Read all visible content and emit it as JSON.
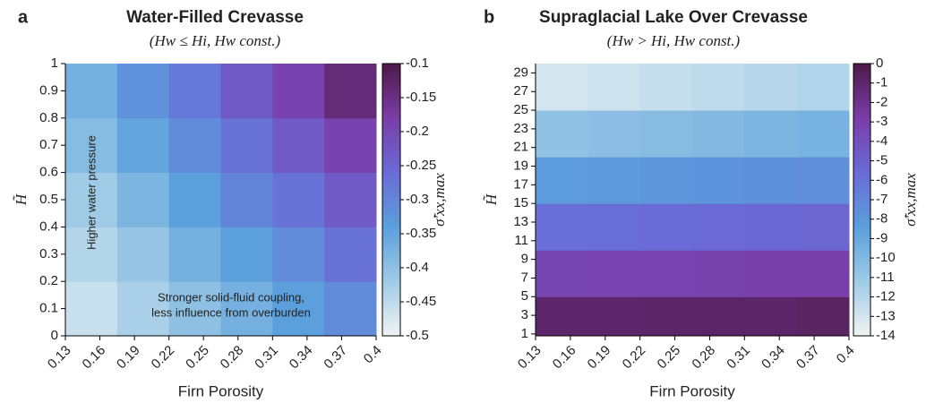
{
  "chart_data": [
    {
      "type": "heatmap",
      "panel": "a",
      "title": "Water-Filled Crevasse",
      "subtitle": "(Hw ≤ Hi, Hw const.)",
      "xlabel": "Firn Porosity",
      "ylabel": "H̃",
      "colorbar_label": "σ̃'xx,max",
      "xlim": [
        0.13,
        0.4
      ],
      "xticks": [
        0.13,
        0.16,
        0.19,
        0.22,
        0.25,
        0.28,
        0.31,
        0.34,
        0.37,
        0.4
      ],
      "ylim": [
        0,
        1
      ],
      "yticks": [
        0,
        0.1,
        0.2,
        0.3,
        0.4,
        0.5,
        0.6,
        0.7,
        0.8,
        0.9,
        1
      ],
      "clim": [
        -0.5,
        -0.1
      ],
      "cticks": [
        -0.5,
        -0.45,
        -0.4,
        -0.35,
        -0.3,
        -0.25,
        -0.2,
        -0.15,
        -0.1
      ],
      "colors": [
        "#f0f3f3",
        "#9fcbe6",
        "#5b9fdc",
        "#6a6bd6",
        "#7a3da8",
        "#4d1a48"
      ],
      "xbins": [
        0.13,
        0.175,
        0.22,
        0.265,
        0.31,
        0.355,
        0.4
      ],
      "ybins": [
        0,
        0.2,
        0.4,
        0.6,
        0.8,
        1
      ],
      "z": [
        [
          -0.46,
          -0.43,
          -0.4,
          -0.37,
          -0.34,
          -0.31
        ],
        [
          -0.44,
          -0.41,
          -0.37,
          -0.34,
          -0.31,
          -0.27
        ],
        [
          -0.42,
          -0.38,
          -0.34,
          -0.3,
          -0.27,
          -0.23
        ],
        [
          -0.39,
          -0.35,
          -0.31,
          -0.27,
          -0.23,
          -0.19
        ],
        [
          -0.37,
          -0.32,
          -0.28,
          -0.23,
          -0.19,
          -0.14
        ]
      ],
      "annotations": [
        "Higher water pressure",
        "Stronger solid-fluid coupling,",
        "less influence from overburden"
      ]
    },
    {
      "type": "heatmap",
      "panel": "b",
      "title": "Supraglacial Lake Over Crevasse",
      "subtitle": "(Hw > Hi, Hw const.)",
      "xlabel": "Firn Porosity",
      "ylabel": "H̃",
      "colorbar_label": "σ̃'xx,max",
      "xlim": [
        0.13,
        0.4
      ],
      "xticks": [
        0.13,
        0.16,
        0.19,
        0.22,
        0.25,
        0.28,
        0.31,
        0.34,
        0.37,
        0.4
      ],
      "ylim": [
        0.8,
        30
      ],
      "yticks": [
        1,
        3,
        5,
        7,
        9,
        11,
        13,
        15,
        17,
        19,
        21,
        23,
        25,
        27,
        29
      ],
      "clim": [
        -14,
        0
      ],
      "cticks": [
        -14,
        -13,
        -12,
        -11,
        -10,
        -9,
        -8,
        -7,
        -6,
        -5,
        -4,
        -3,
        -2,
        -1,
        0
      ],
      "colors": [
        "#f0f3f3",
        "#9fcbe6",
        "#5b9fdc",
        "#6a6bd6",
        "#7a3da8",
        "#4d1a48"
      ],
      "xbins": [
        0.13,
        0.175,
        0.22,
        0.265,
        0.31,
        0.355,
        0.4
      ],
      "ybins": [
        0.8,
        5,
        10,
        15,
        20,
        25,
        30
      ],
      "z": [
        [
          -1.0,
          -1.0,
          -0.9,
          -0.9,
          -0.9,
          -0.8
        ],
        [
          -3.3,
          -3.2,
          -3.2,
          -3.1,
          -3.0,
          -3.0
        ],
        [
          -5.8,
          -5.7,
          -5.6,
          -5.5,
          -5.4,
          -5.3
        ],
        [
          -8.2,
          -8.1,
          -7.9,
          -7.8,
          -7.6,
          -7.5
        ],
        [
          -10.6,
          -10.4,
          -10.2,
          -10.0,
          -9.8,
          -9.6
        ],
        [
          -13.0,
          -12.8,
          -12.5,
          -12.3,
          -12.0,
          -11.8
        ]
      ]
    }
  ]
}
